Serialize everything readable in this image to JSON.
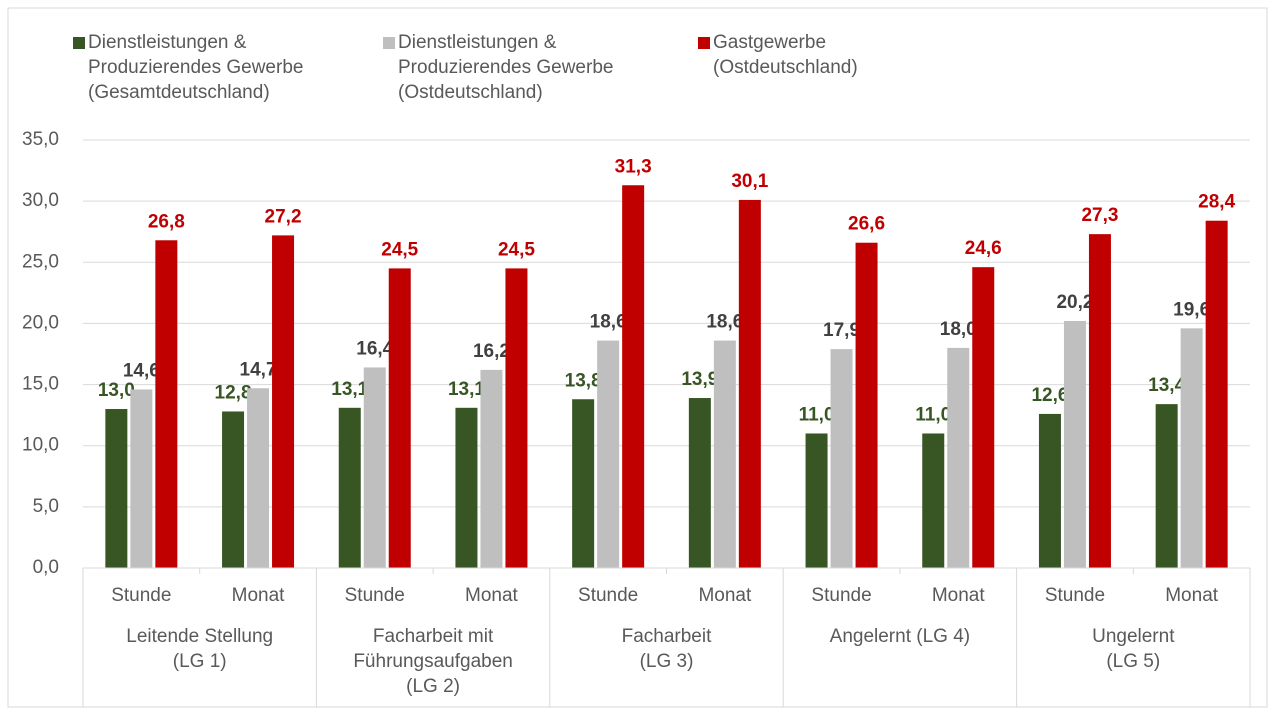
{
  "chart_data": {
    "type": "bar",
    "categories": [
      "Stunde",
      "Monat",
      "Stunde",
      "Monat",
      "Stunde",
      "Monat",
      "Stunde",
      "Monat",
      "Stunde",
      "Monat"
    ],
    "groups": [
      "Leitende Stellung\n(LG 1)",
      "Facharbeit mit\nFührungsaufgaben\n(LG 2)",
      "Facharbeit\n(LG 3)",
      "Angelernt (LG 4)",
      "Ungelernt\n(LG 5)"
    ],
    "series": [
      {
        "name": "Dienstleistungen &\nProduzierendes Gewerbe\n(Gesamtdeutschland)",
        "color": "#375623",
        "label_color": "#375623",
        "values": [
          13.0,
          12.8,
          13.1,
          13.1,
          13.8,
          13.9,
          11.0,
          11.0,
          12.6,
          13.4
        ],
        "value_labels": [
          "13,0",
          "12,8",
          "13,1",
          "13,1",
          "13,8",
          "13,9",
          "11,0",
          "11,0",
          "12,6",
          "13,4"
        ]
      },
      {
        "name": "Dienstleistungen &\nProduzierendes Gewerbe\n(Ostdeutschland)",
        "color": "#bfbfbf",
        "label_color": "#404040",
        "values": [
          14.6,
          14.7,
          16.4,
          16.2,
          18.6,
          18.6,
          17.9,
          18.0,
          20.2,
          19.6
        ],
        "value_labels": [
          "14,6",
          "14,7",
          "16,4",
          "16,2",
          "18,6",
          "18,6",
          "17,9",
          "18,0",
          "20,2",
          "19,6"
        ]
      },
      {
        "name": "Gastgewerbe\n(Ostdeutschland)",
        "color": "#c00000",
        "label_color": "#c00000",
        "values": [
          26.8,
          27.2,
          24.5,
          24.5,
          31.3,
          30.1,
          26.6,
          24.6,
          27.3,
          28.4
        ],
        "value_labels": [
          "26,8",
          "27,2",
          "24,5",
          "24,5",
          "31,3",
          "30,1",
          "26,6",
          "24,6",
          "27,3",
          "28,4"
        ]
      }
    ],
    "ylim": [
      0,
      35
    ],
    "yticks": [
      {
        "value": 0,
        "label": "0,0"
      },
      {
        "value": 5,
        "label": "5,0"
      },
      {
        "value": 10,
        "label": "10,0"
      },
      {
        "value": 15,
        "label": "15,0"
      },
      {
        "value": 20,
        "label": "20,0"
      },
      {
        "value": 25,
        "label": "25,0"
      },
      {
        "value": 30,
        "label": "30,0"
      },
      {
        "value": 35,
        "label": "35,0"
      }
    ],
    "grid": true,
    "legend": "top"
  }
}
